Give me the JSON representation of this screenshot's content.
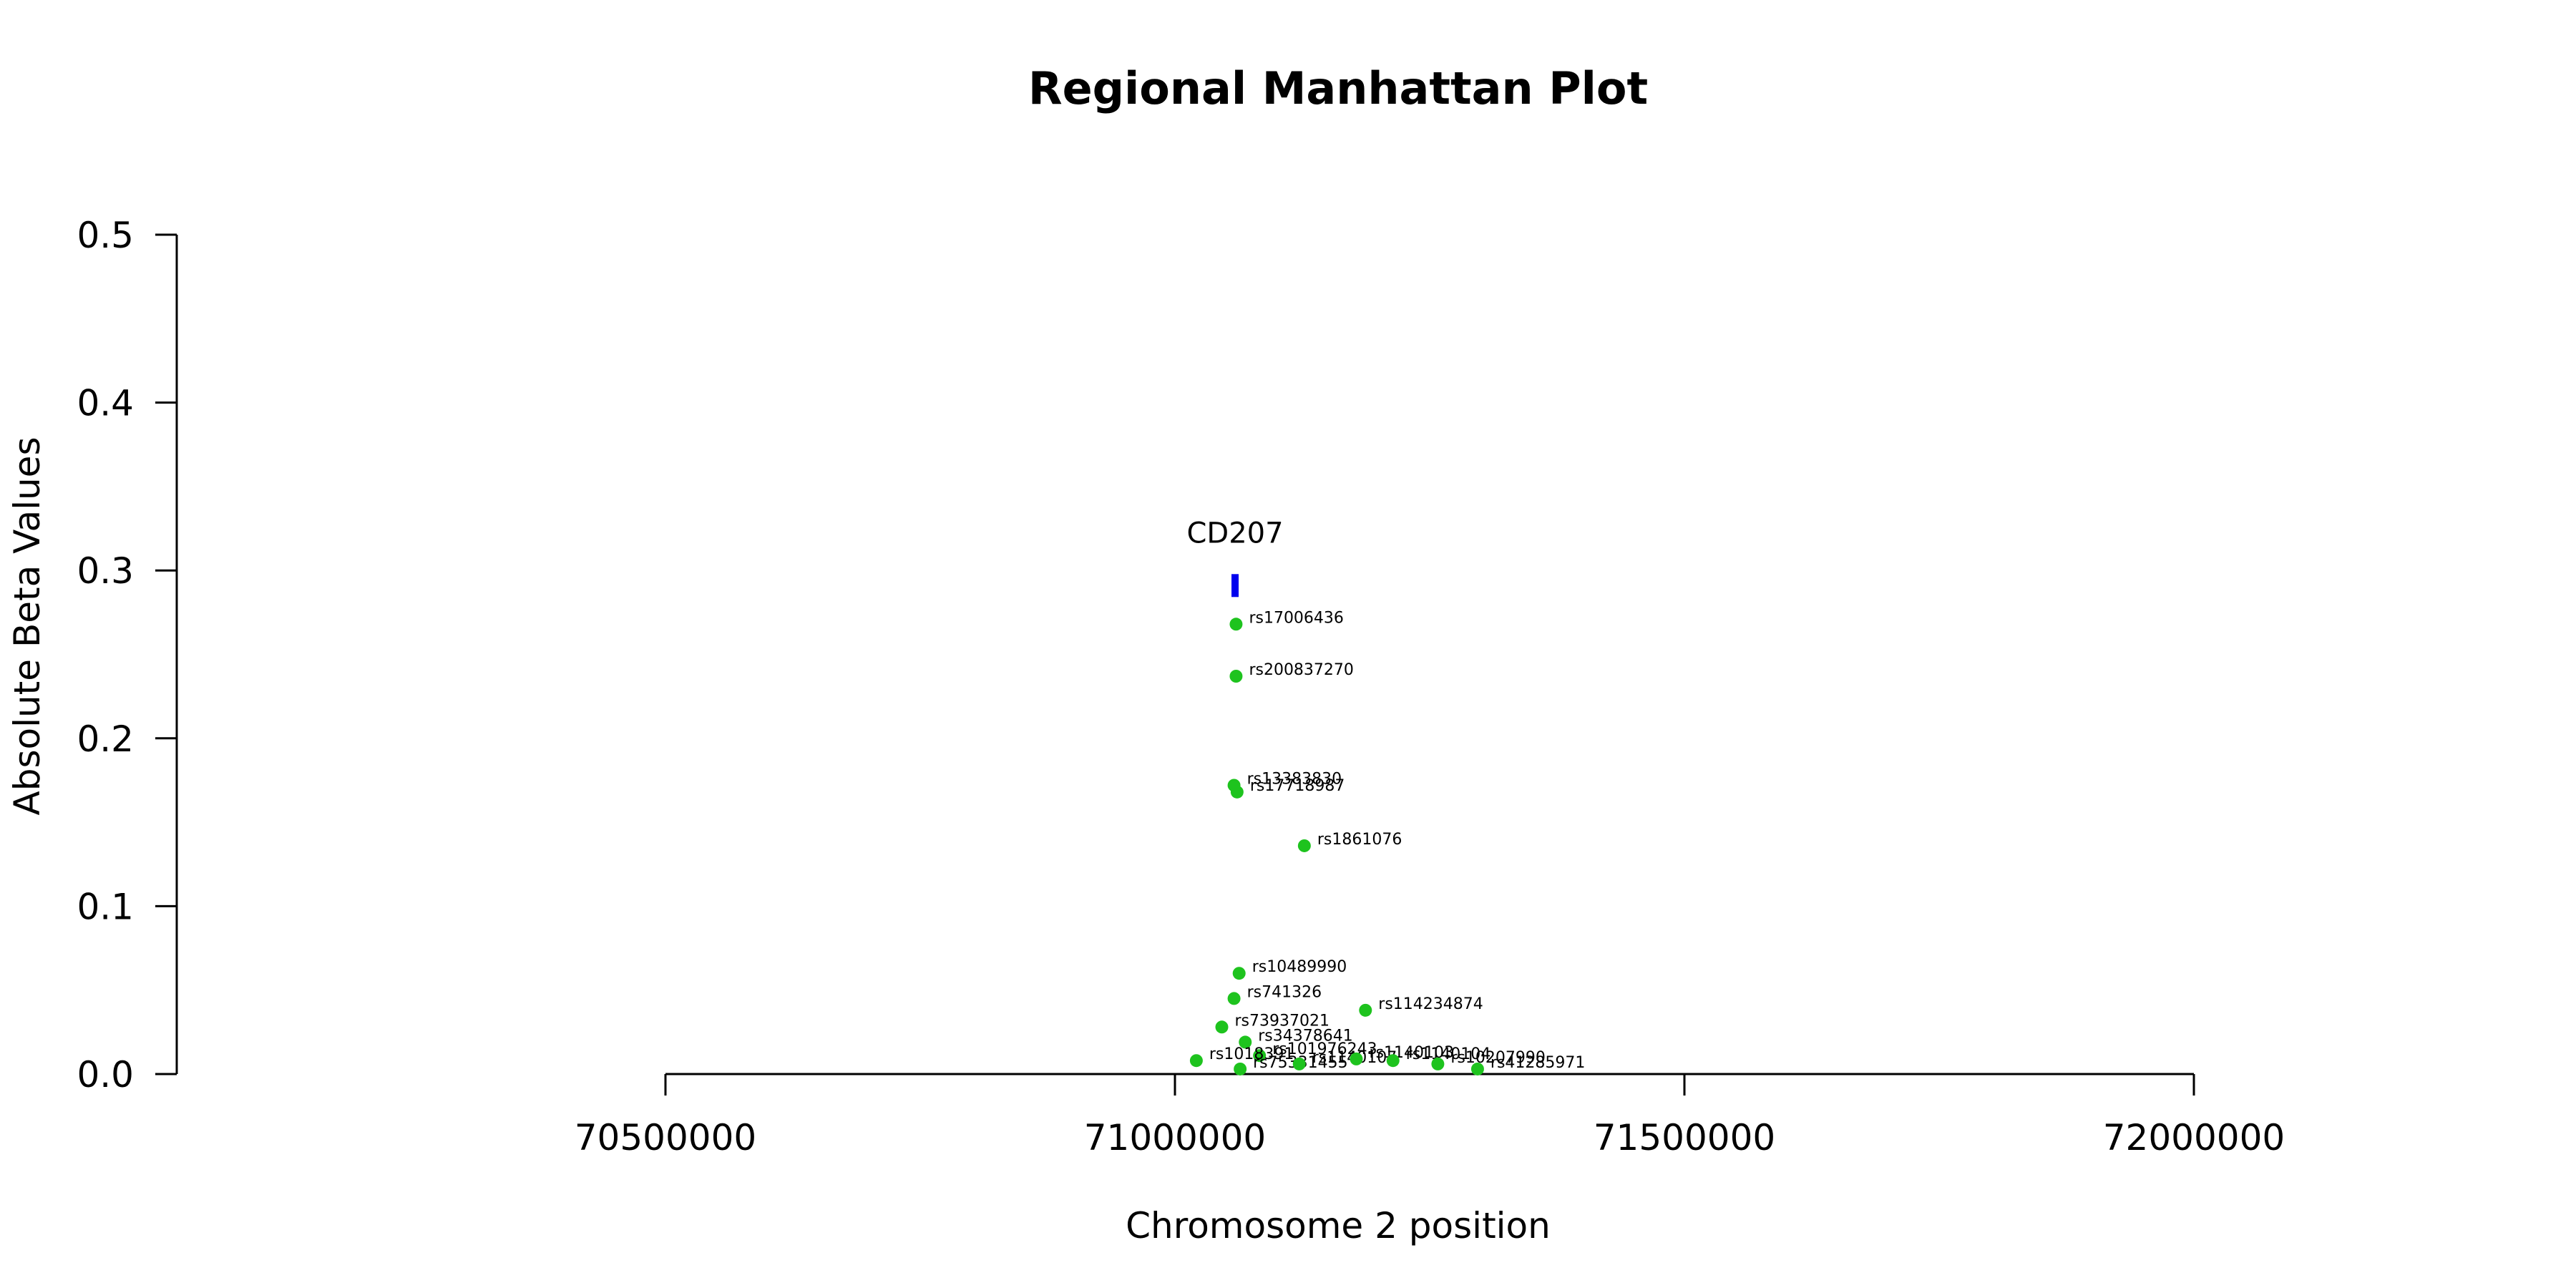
{
  "chart_data": {
    "type": "scatter",
    "title": "Regional Manhattan Plot",
    "xlabel": "Chromosome 2 position",
    "ylabel": "Absolute Beta Values",
    "xlim": [
      70500000,
      72000000
    ],
    "ylim": [
      0,
      0.5
    ],
    "x_ticks": [
      "70500000",
      "71000000",
      "71500000",
      "72000000"
    ],
    "y_ticks": [
      "0.0",
      "0.1",
      "0.2",
      "0.3",
      "0.4",
      "0.5"
    ],
    "point_color": "#1ec31e",
    "points": [
      {
        "name": "rs17006436",
        "x": 71060000,
        "y": 0.268
      },
      {
        "name": "rs200837270",
        "x": 71060000,
        "y": 0.237
      },
      {
        "name": "rs13383830",
        "x": 71058000,
        "y": 0.172
      },
      {
        "name": "rs17718987",
        "x": 71061000,
        "y": 0.168
      },
      {
        "name": "rs1861076",
        "x": 71127000,
        "y": 0.136
      },
      {
        "name": "rs10489990",
        "x": 71063000,
        "y": 0.06
      },
      {
        "name": "rs741326",
        "x": 71058000,
        "y": 0.045
      },
      {
        "name": "rs114234874",
        "x": 71187000,
        "y": 0.038
      },
      {
        "name": "rs73937021",
        "x": 71046000,
        "y": 0.028
      },
      {
        "name": "rs34378641",
        "x": 71069000,
        "y": 0.019
      },
      {
        "name": "rs101976243",
        "x": 71083000,
        "y": 0.011
      },
      {
        "name": "rs1018391",
        "x": 71021000,
        "y": 0.008
      },
      {
        "name": "rs75331455",
        "x": 71064000,
        "y": 0.003
      },
      {
        "name": "rs1140107",
        "x": 71122000,
        "y": 0.006
      },
      {
        "name": "rs1140103",
        "x": 71178000,
        "y": 0.009
      },
      {
        "name": "rs1140104",
        "x": 71214000,
        "y": 0.008
      },
      {
        "name": "rs10207990",
        "x": 71258000,
        "y": 0.006
      },
      {
        "name": "rs41285971",
        "x": 71297000,
        "y": 0.003
      }
    ],
    "gene": {
      "name": "CD207",
      "x": 71059000,
      "y": 0.291,
      "color": "#0000ee"
    }
  }
}
